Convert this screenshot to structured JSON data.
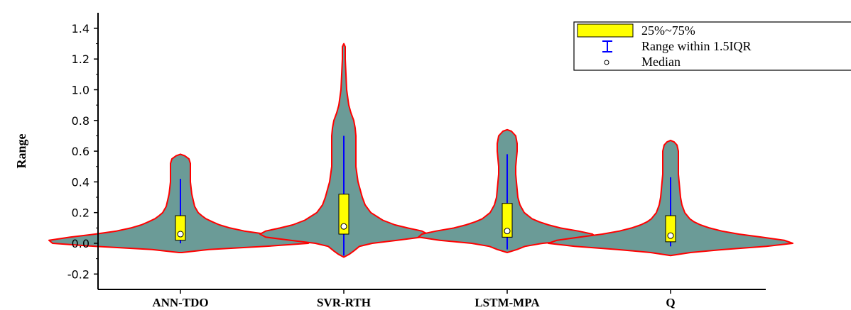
{
  "chart_data": {
    "type": "violin",
    "title": "",
    "xlabel": "",
    "ylabel": "Range",
    "ylim": [
      -0.2,
      1.4
    ],
    "yticks": [
      "-0.2",
      "0.0",
      "0.2",
      "0.4",
      "0.6",
      "0.8",
      "1.0",
      "1.2",
      "1.4"
    ],
    "grid": false,
    "legend_position": "top-right",
    "legend": {
      "iqr_label": "25%~75%",
      "whisker_label": "Range within 1.5IQR",
      "median_label": "Median"
    },
    "colors": {
      "violin_fill": "#6b9b97",
      "violin_outline": "#ff0000",
      "box_fill": "#ffff00",
      "whisker": "#0000ff",
      "median": "#ffffff"
    },
    "series": [
      {
        "name": "ANN-TDO",
        "q1": 0.02,
        "median": 0.06,
        "q3": 0.18,
        "whisker_low": 0.0,
        "whisker_high": 0.42,
        "violin_min": -0.06,
        "violin_max": 0.58,
        "density": [
          [
            -0.06,
            2
          ],
          [
            -0.04,
            40
          ],
          [
            -0.02,
            120
          ],
          [
            0.0,
            180
          ],
          [
            0.02,
            185
          ],
          [
            0.04,
            155
          ],
          [
            0.06,
            120
          ],
          [
            0.08,
            90
          ],
          [
            0.1,
            70
          ],
          [
            0.12,
            55
          ],
          [
            0.14,
            45
          ],
          [
            0.16,
            36
          ],
          [
            0.18,
            30
          ],
          [
            0.2,
            25
          ],
          [
            0.24,
            20
          ],
          [
            0.28,
            18
          ],
          [
            0.32,
            16
          ],
          [
            0.36,
            15
          ],
          [
            0.4,
            14
          ],
          [
            0.44,
            14
          ],
          [
            0.48,
            14
          ],
          [
            0.52,
            14
          ],
          [
            0.55,
            12
          ],
          [
            0.57,
            6
          ],
          [
            0.58,
            0
          ]
        ]
      },
      {
        "name": "SVR-RTH",
        "q1": 0.06,
        "median": 0.11,
        "q3": 0.32,
        "whisker_low": -0.08,
        "whisker_high": 0.7,
        "violin_min": -0.09,
        "violin_max": 1.3,
        "density": [
          [
            -0.09,
            0
          ],
          [
            -0.07,
            8
          ],
          [
            -0.05,
            14
          ],
          [
            -0.02,
            22
          ],
          [
            0.0,
            40
          ],
          [
            0.02,
            75
          ],
          [
            0.04,
            110
          ],
          [
            0.06,
            118
          ],
          [
            0.08,
            110
          ],
          [
            0.1,
            90
          ],
          [
            0.12,
            72
          ],
          [
            0.15,
            55
          ],
          [
            0.2,
            38
          ],
          [
            0.25,
            30
          ],
          [
            0.3,
            26
          ],
          [
            0.35,
            23
          ],
          [
            0.4,
            20
          ],
          [
            0.5,
            17
          ],
          [
            0.6,
            17
          ],
          [
            0.7,
            17
          ],
          [
            0.75,
            16
          ],
          [
            0.8,
            14
          ],
          [
            0.85,
            10
          ],
          [
            0.9,
            7
          ],
          [
            1.0,
            4
          ],
          [
            1.1,
            3
          ],
          [
            1.2,
            2
          ],
          [
            1.28,
            2
          ],
          [
            1.3,
            0
          ]
        ]
      },
      {
        "name": "LSTM-MPA",
        "q1": 0.04,
        "median": 0.08,
        "q3": 0.26,
        "whisker_low": -0.04,
        "whisker_high": 0.58,
        "violin_min": -0.06,
        "violin_max": 0.74,
        "density": [
          [
            -0.06,
            0
          ],
          [
            -0.04,
            14
          ],
          [
            -0.02,
            25
          ],
          [
            0.0,
            50
          ],
          [
            0.02,
            95
          ],
          [
            0.04,
            125
          ],
          [
            0.06,
            120
          ],
          [
            0.08,
            100
          ],
          [
            0.1,
            75
          ],
          [
            0.12,
            58
          ],
          [
            0.14,
            45
          ],
          [
            0.16,
            35
          ],
          [
            0.2,
            24
          ],
          [
            0.25,
            18
          ],
          [
            0.3,
            15
          ],
          [
            0.35,
            14
          ],
          [
            0.4,
            13
          ],
          [
            0.45,
            12
          ],
          [
            0.5,
            12
          ],
          [
            0.55,
            13
          ],
          [
            0.6,
            14
          ],
          [
            0.65,
            14
          ],
          [
            0.7,
            12
          ],
          [
            0.73,
            6
          ],
          [
            0.74,
            0
          ]
        ]
      },
      {
        "name": "Q",
        "q1": 0.01,
        "median": 0.05,
        "q3": 0.18,
        "whisker_low": -0.02,
        "whisker_high": 0.43,
        "violin_min": -0.08,
        "violin_max": 0.67,
        "density": [
          [
            -0.08,
            0
          ],
          [
            -0.06,
            28
          ],
          [
            -0.04,
            75
          ],
          [
            -0.02,
            135
          ],
          [
            0.0,
            172
          ],
          [
            0.02,
            160
          ],
          [
            0.04,
            128
          ],
          [
            0.06,
            96
          ],
          [
            0.08,
            72
          ],
          [
            0.1,
            55
          ],
          [
            0.12,
            42
          ],
          [
            0.14,
            33
          ],
          [
            0.16,
            27
          ],
          [
            0.2,
            20
          ],
          [
            0.25,
            16
          ],
          [
            0.3,
            14
          ],
          [
            0.35,
            13
          ],
          [
            0.4,
            12
          ],
          [
            0.45,
            11
          ],
          [
            0.5,
            11
          ],
          [
            0.55,
            11
          ],
          [
            0.6,
            11
          ],
          [
            0.64,
            9
          ],
          [
            0.66,
            5
          ],
          [
            0.67,
            0
          ]
        ]
      }
    ]
  }
}
